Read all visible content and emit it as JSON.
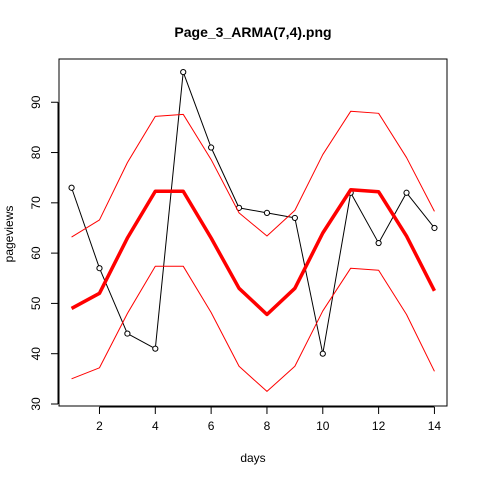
{
  "chart_data": {
    "type": "line",
    "title": "Page_3_ARMA(7,4).png",
    "xlabel": "days",
    "ylabel": "pageviews",
    "xlim": [
      0.55,
      14.45
    ],
    "ylim": [
      29.6,
      98.6
    ],
    "xticks": [
      2,
      4,
      6,
      8,
      10,
      12,
      14
    ],
    "yticks": [
      30,
      40,
      50,
      60,
      70,
      80,
      90
    ],
    "grid": false,
    "x": [
      1,
      2,
      3,
      4,
      5,
      6,
      7,
      8,
      9,
      10,
      11,
      12,
      13,
      14
    ],
    "series": [
      {
        "role": "observed",
        "color": "#000000",
        "markers": "open-circle",
        "values": [
          73,
          57,
          44,
          41,
          96,
          81,
          69,
          68,
          67,
          40,
          72,
          62,
          72,
          65
        ]
      },
      {
        "role": "fitted",
        "color": "#ff0000",
        "thick": true,
        "values": [
          49,
          52,
          63,
          72.3,
          72.3,
          63,
          53,
          47.8,
          53,
          64,
          72.6,
          72.2,
          63.4,
          52.5
        ]
      },
      {
        "role": "upper-band",
        "color": "#ff0000",
        "values": [
          63.2,
          66.6,
          78,
          87.2,
          87.6,
          78.6,
          68,
          63.4,
          68.5,
          79.6,
          88.2,
          87.8,
          79,
          68.3
        ]
      },
      {
        "role": "lower-band",
        "color": "#ff0000",
        "values": [
          35,
          37.2,
          48,
          57.4,
          57.4,
          48.2,
          37.5,
          32.5,
          37.5,
          48.5,
          57,
          56.6,
          47.8,
          36.5
        ]
      }
    ]
  }
}
